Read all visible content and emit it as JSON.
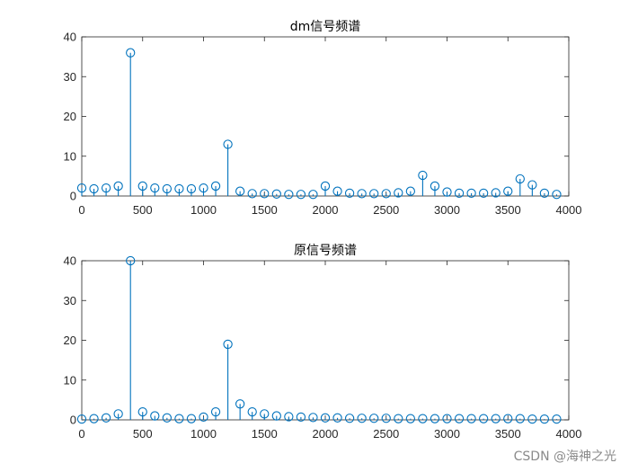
{
  "watermark": "CSDN @海神之光",
  "colors": {
    "stem": "#0072bd",
    "axis": "#262626"
  },
  "chart_data": [
    {
      "type": "stem",
      "title": "dm信号频谱",
      "xlim": [
        0,
        4000
      ],
      "ylim": [
        0,
        40
      ],
      "xticks": [
        0,
        500,
        1000,
        1500,
        2000,
        2500,
        3000,
        3500,
        4000
      ],
      "yticks": [
        0,
        10,
        20,
        30,
        40
      ],
      "x": [
        0,
        100,
        200,
        300,
        400,
        500,
        600,
        700,
        800,
        900,
        1000,
        1100,
        1200,
        1300,
        1400,
        1500,
        1600,
        1700,
        1800,
        1900,
        2000,
        2100,
        2200,
        2300,
        2400,
        2500,
        2600,
        2700,
        2800,
        2900,
        3000,
        3100,
        3200,
        3300,
        3400,
        3500,
        3600,
        3700,
        3800,
        3900
      ],
      "y": [
        2.0,
        1.8,
        2.0,
        2.5,
        36.0,
        2.5,
        2.0,
        1.8,
        1.8,
        1.8,
        2.0,
        2.5,
        13.0,
        1.2,
        0.6,
        0.6,
        0.5,
        0.4,
        0.4,
        0.4,
        2.5,
        1.2,
        0.7,
        0.6,
        0.6,
        0.6,
        0.8,
        1.2,
        5.2,
        2.5,
        1.0,
        0.7,
        0.7,
        0.7,
        0.8,
        1.2,
        4.3,
        2.8,
        0.7,
        0.4
      ]
    },
    {
      "type": "stem",
      "title": "原信号频谱",
      "xlim": [
        0,
        4000
      ],
      "ylim": [
        0,
        40
      ],
      "xticks": [
        0,
        500,
        1000,
        1500,
        2000,
        2500,
        3000,
        3500,
        4000
      ],
      "yticks": [
        0,
        10,
        20,
        30,
        40
      ],
      "x": [
        0,
        100,
        200,
        300,
        400,
        500,
        600,
        700,
        800,
        900,
        1000,
        1100,
        1200,
        1300,
        1400,
        1500,
        1600,
        1700,
        1800,
        1900,
        2000,
        2100,
        2200,
        2300,
        2400,
        2500,
        2600,
        2700,
        2800,
        2900,
        3000,
        3100,
        3200,
        3300,
        3400,
        3500,
        3600,
        3700,
        3800,
        3900
      ],
      "y": [
        0.2,
        0.3,
        0.5,
        1.5,
        40.0,
        2.0,
        1.0,
        0.5,
        0.3,
        0.3,
        0.7,
        2.0,
        19.0,
        4.0,
        2.0,
        1.5,
        1.0,
        0.8,
        0.7,
        0.6,
        0.5,
        0.5,
        0.4,
        0.4,
        0.4,
        0.4,
        0.3,
        0.3,
        0.3,
        0.3,
        0.3,
        0.3,
        0.3,
        0.3,
        0.3,
        0.3,
        0.3,
        0.2,
        0.2,
        0.2
      ]
    }
  ]
}
